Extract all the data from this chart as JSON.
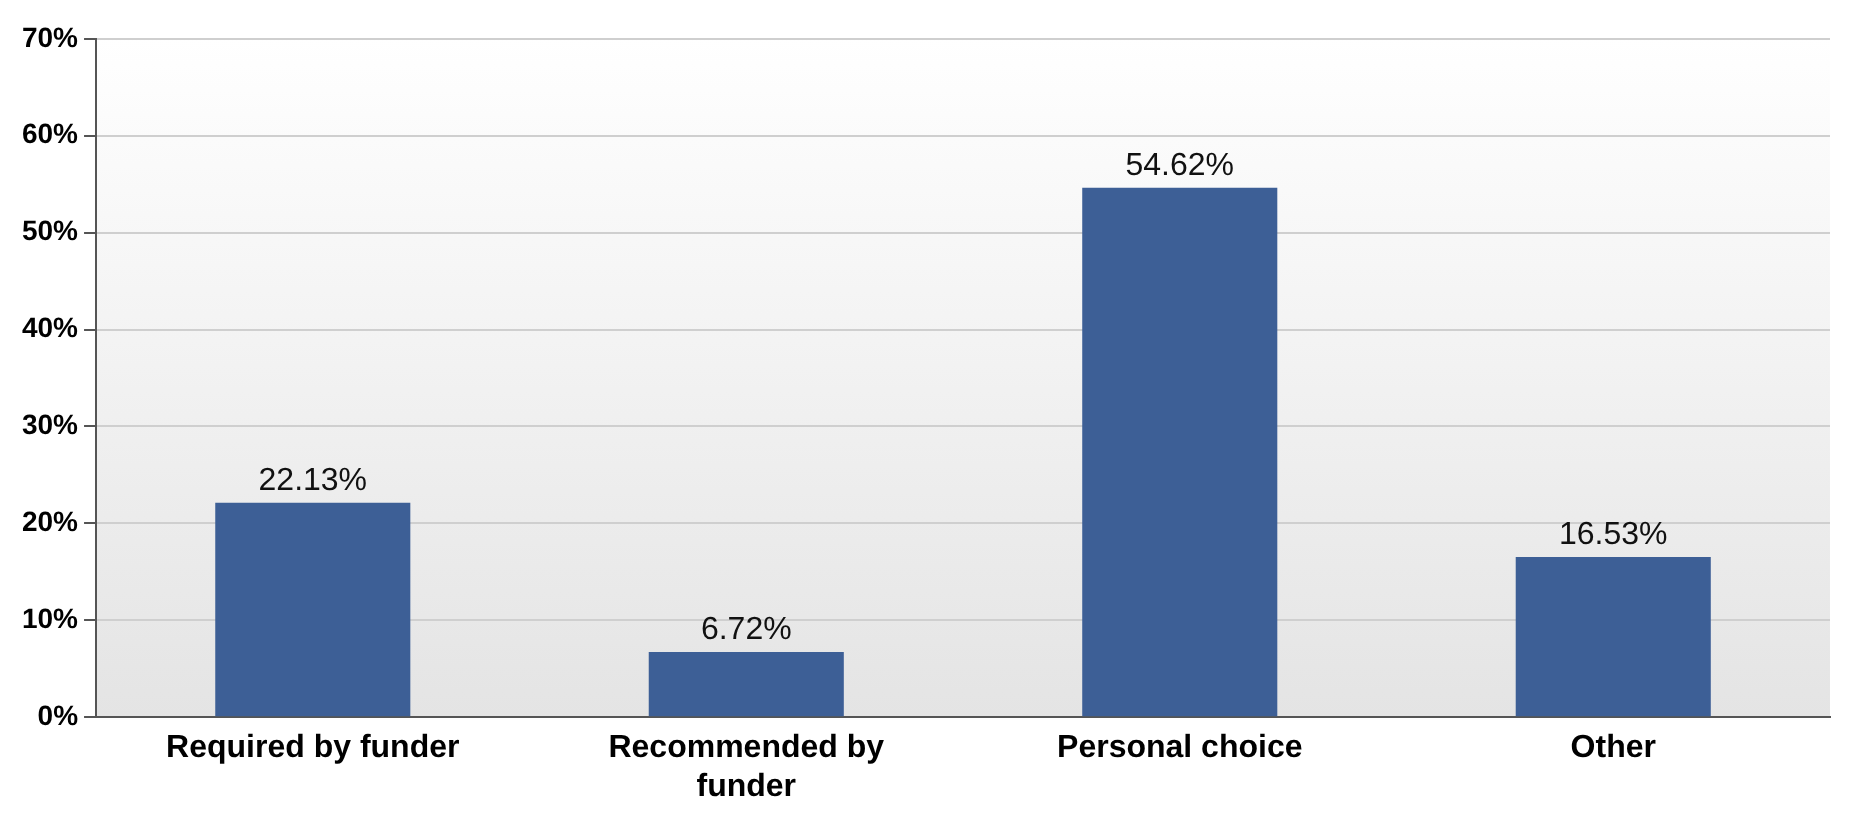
{
  "chart_data": {
    "type": "bar",
    "categories": [
      "Required by funder",
      "Recommended by funder",
      "Personal choice",
      "Other"
    ],
    "values": [
      22.13,
      6.72,
      54.62,
      16.53
    ],
    "color": "#3d5f96",
    "value_labels": [
      "22.13%",
      "6.72%",
      "54.62%",
      "16.53%"
    ],
    "ylim": [
      0,
      70
    ],
    "yticks": [
      {
        "value": 0,
        "label": "0%"
      },
      {
        "value": 10,
        "label": "10%"
      },
      {
        "value": 20,
        "label": "20%"
      },
      {
        "value": 30,
        "label": "30%"
      },
      {
        "value": 40,
        "label": "40%"
      },
      {
        "value": 50,
        "label": "50%"
      },
      {
        "value": 60,
        "label": "60%"
      },
      {
        "value": 70,
        "label": "70%"
      }
    ],
    "grid": "y",
    "legend": false
  }
}
